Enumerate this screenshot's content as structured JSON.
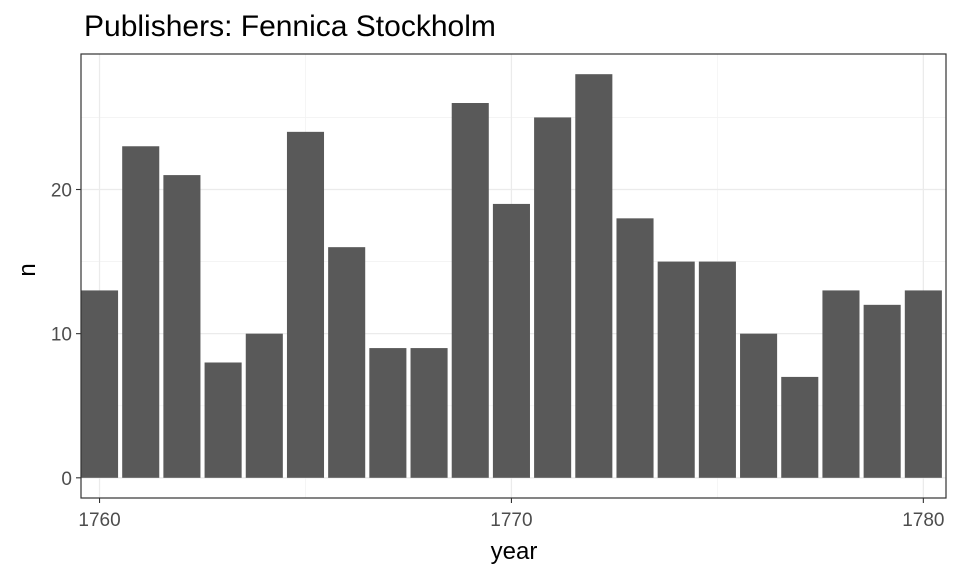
{
  "chart_data": {
    "type": "bar",
    "title": "Publishers: Fennica Stockholm",
    "xlabel": "year",
    "ylabel": "n",
    "x": [
      1760,
      1761,
      1762,
      1763,
      1764,
      1765,
      1766,
      1767,
      1768,
      1769,
      1770,
      1771,
      1772,
      1773,
      1774,
      1775,
      1776,
      1777,
      1778,
      1779,
      1780
    ],
    "values": [
      13,
      23,
      21,
      8,
      10,
      24,
      16,
      9,
      9,
      26,
      19,
      25,
      28,
      18,
      15,
      15,
      10,
      7,
      13,
      12,
      13
    ],
    "xlim": [
      1759.55,
      1780.55
    ],
    "ylim": [
      -1.4,
      29.4
    ],
    "x_ticks": [
      1760,
      1770,
      1780
    ],
    "y_ticks": [
      0,
      10,
      20
    ],
    "grid": true,
    "bar_color": "#595959",
    "theme": "bw"
  }
}
